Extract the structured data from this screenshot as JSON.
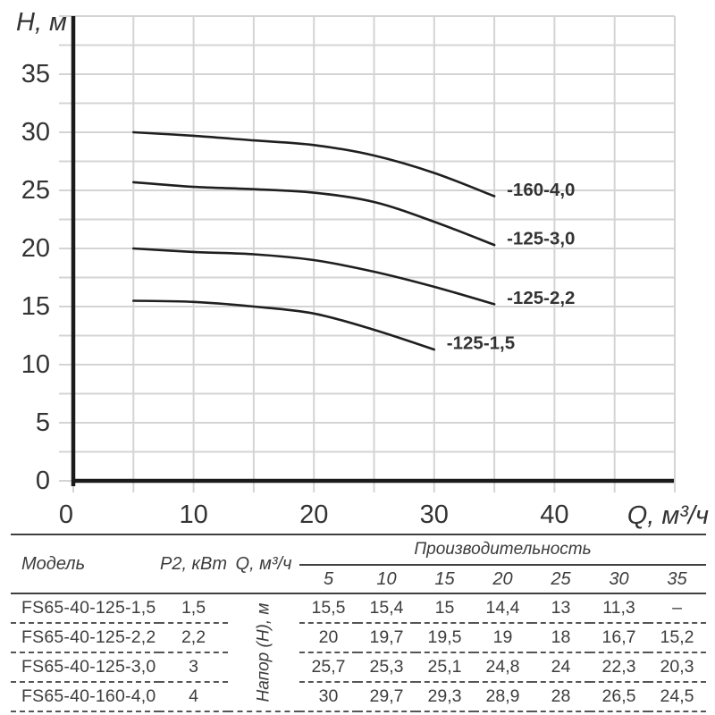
{
  "chart_data": {
    "type": "line",
    "title": "",
    "xlabel": "Q, м³/ч",
    "ylabel": "H, м",
    "xlim": [
      0,
      50
    ],
    "ylim": [
      0,
      40
    ],
    "x_ticks": [
      0,
      10,
      20,
      30,
      40
    ],
    "y_ticks": [
      0,
      5,
      10,
      15,
      20,
      25,
      30,
      35
    ],
    "grid": "on",
    "grid_step_x": 5,
    "grid_step_y": 2.5,
    "legend_position": "inline-labels-at-curve-end",
    "x": [
      5,
      10,
      15,
      20,
      25,
      30,
      35
    ],
    "series": [
      {
        "name": "-160-4,0",
        "values": [
          30,
          29.7,
          29.3,
          28.9,
          28,
          26.5,
          24.5
        ]
      },
      {
        "name": "-125-3,0",
        "values": [
          25.7,
          25.3,
          25.1,
          24.8,
          24,
          22.3,
          20.3
        ]
      },
      {
        "name": "-125-2,2",
        "values": [
          20,
          19.7,
          19.5,
          19,
          18,
          16.7,
          15.2
        ]
      },
      {
        "name": "-125-1,5",
        "values": [
          15.5,
          15.4,
          15,
          14.4,
          13,
          11.3,
          null
        ]
      }
    ]
  },
  "table": {
    "headers": {
      "model": "Модель",
      "power": "P2, кВт",
      "flow": "Q, м³/ч",
      "capacity": "Производительность",
      "head": "Напор (Н), м",
      "flow_values": [
        "5",
        "10",
        "15",
        "20",
        "25",
        "30",
        "35"
      ]
    },
    "rows": [
      {
        "model": "FS65-40-125-1,5",
        "power": "1,5",
        "values": [
          "15,5",
          "15,4",
          "15",
          "14,4",
          "13",
          "11,3",
          "–"
        ]
      },
      {
        "model": "FS65-40-125-2,2",
        "power": "2,2",
        "values": [
          "20",
          "19,7",
          "19,5",
          "19",
          "18",
          "16,7",
          "15,2"
        ]
      },
      {
        "model": "FS65-40-125-3,0",
        "power": "3",
        "values": [
          "25,7",
          "25,3",
          "25,1",
          "24,8",
          "24",
          "22,3",
          "20,3"
        ]
      },
      {
        "model": "FS65-40-160-4,0",
        "power": "4",
        "values": [
          "30",
          "29,7",
          "29,3",
          "28,9",
          "28",
          "26,5",
          "24,5"
        ]
      }
    ]
  },
  "colors": {
    "curve": "#1f1f1f",
    "grid": "#d4d4d4",
    "axis": "#1b1b1b",
    "text": "#333333"
  }
}
